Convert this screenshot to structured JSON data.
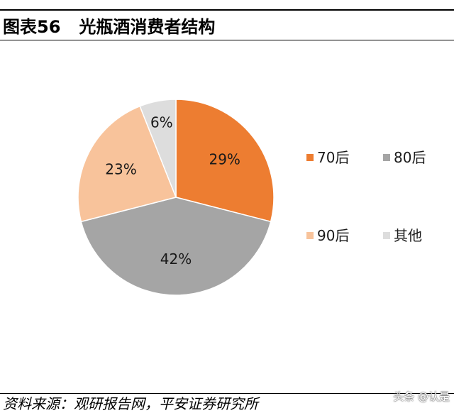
{
  "header": {
    "figure_label": "图表56",
    "title": "光瓶酒消费者结构"
  },
  "chart_data": {
    "type": "pie",
    "title": "光瓶酒消费者结构",
    "slices": [
      {
        "name": "70后",
        "value": 29,
        "label": "29%",
        "color": "#ED7D31"
      },
      {
        "name": "80后",
        "value": 42,
        "label": "42%",
        "color": "#A5A5A5"
      },
      {
        "name": "90后",
        "value": 23,
        "label": "23%",
        "color": "#F8C39B"
      },
      {
        "name": "其他",
        "value": 6,
        "label": "6%",
        "color": "#DDDDDD"
      }
    ],
    "start_angle_deg": 0,
    "direction": "clockwise",
    "legend_position": "right"
  },
  "footer": {
    "source": "资料来源：观研报告网，平安证券研究所",
    "watermark": "头条 @认是"
  }
}
